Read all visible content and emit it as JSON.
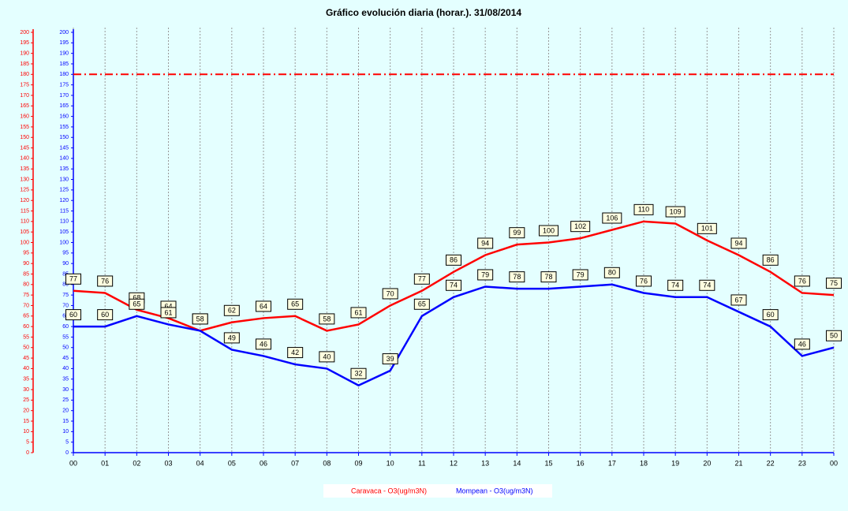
{
  "chart_data": {
    "type": "line",
    "title": "Gráfico evolución diaria (horar.). 31/08/2014",
    "categories": [
      "00",
      "01",
      "02",
      "03",
      "04",
      "05",
      "06",
      "07",
      "08",
      "09",
      "10",
      "11",
      "12",
      "13",
      "14",
      "15",
      "16",
      "17",
      "18",
      "19",
      "20",
      "21",
      "22",
      "23",
      "00"
    ],
    "series": [
      {
        "name": "Caravaca - O3(ug/m3N)",
        "color": "#ff0000",
        "axis": "y",
        "values": [
          77,
          76,
          68,
          64,
          58,
          62,
          64,
          65,
          58,
          61,
          70,
          77,
          86,
          94,
          99,
          100,
          102,
          106,
          110,
          109,
          101,
          94,
          86,
          76,
          75
        ]
      },
      {
        "name": "Mompean - O3(ug/m3N)",
        "color": "#0000ff",
        "axis": "y2",
        "values": [
          60,
          60,
          65,
          61,
          58,
          49,
          46,
          42,
          40,
          32,
          39,
          65,
          74,
          79,
          78,
          78,
          79,
          80,
          76,
          74,
          74,
          67,
          60,
          46,
          50
        ]
      }
    ],
    "ylim": [
      0,
      200
    ],
    "yticks": [
      0,
      5,
      10,
      15,
      20,
      25,
      30,
      35,
      40,
      45,
      50,
      55,
      60,
      65,
      70,
      75,
      80,
      85,
      90,
      95,
      100,
      105,
      110,
      115,
      120,
      125,
      130,
      135,
      140,
      145,
      150,
      155,
      160,
      165,
      170,
      175,
      180,
      185,
      190,
      195,
      200
    ],
    "y2lim": [
      0,
      200
    ],
    "y2ticks": [
      0,
      5,
      10,
      15,
      20,
      25,
      30,
      35,
      40,
      45,
      50,
      55,
      60,
      65,
      70,
      75,
      80,
      85,
      90,
      95,
      100,
      105,
      110,
      115,
      120,
      125,
      130,
      135,
      140,
      145,
      150,
      155,
      160,
      165,
      170,
      175,
      180,
      185,
      190,
      195,
      200
    ],
    "reference_line": {
      "value": 180,
      "color": "#ff0000"
    },
    "grid": true,
    "legend": "bottom"
  }
}
